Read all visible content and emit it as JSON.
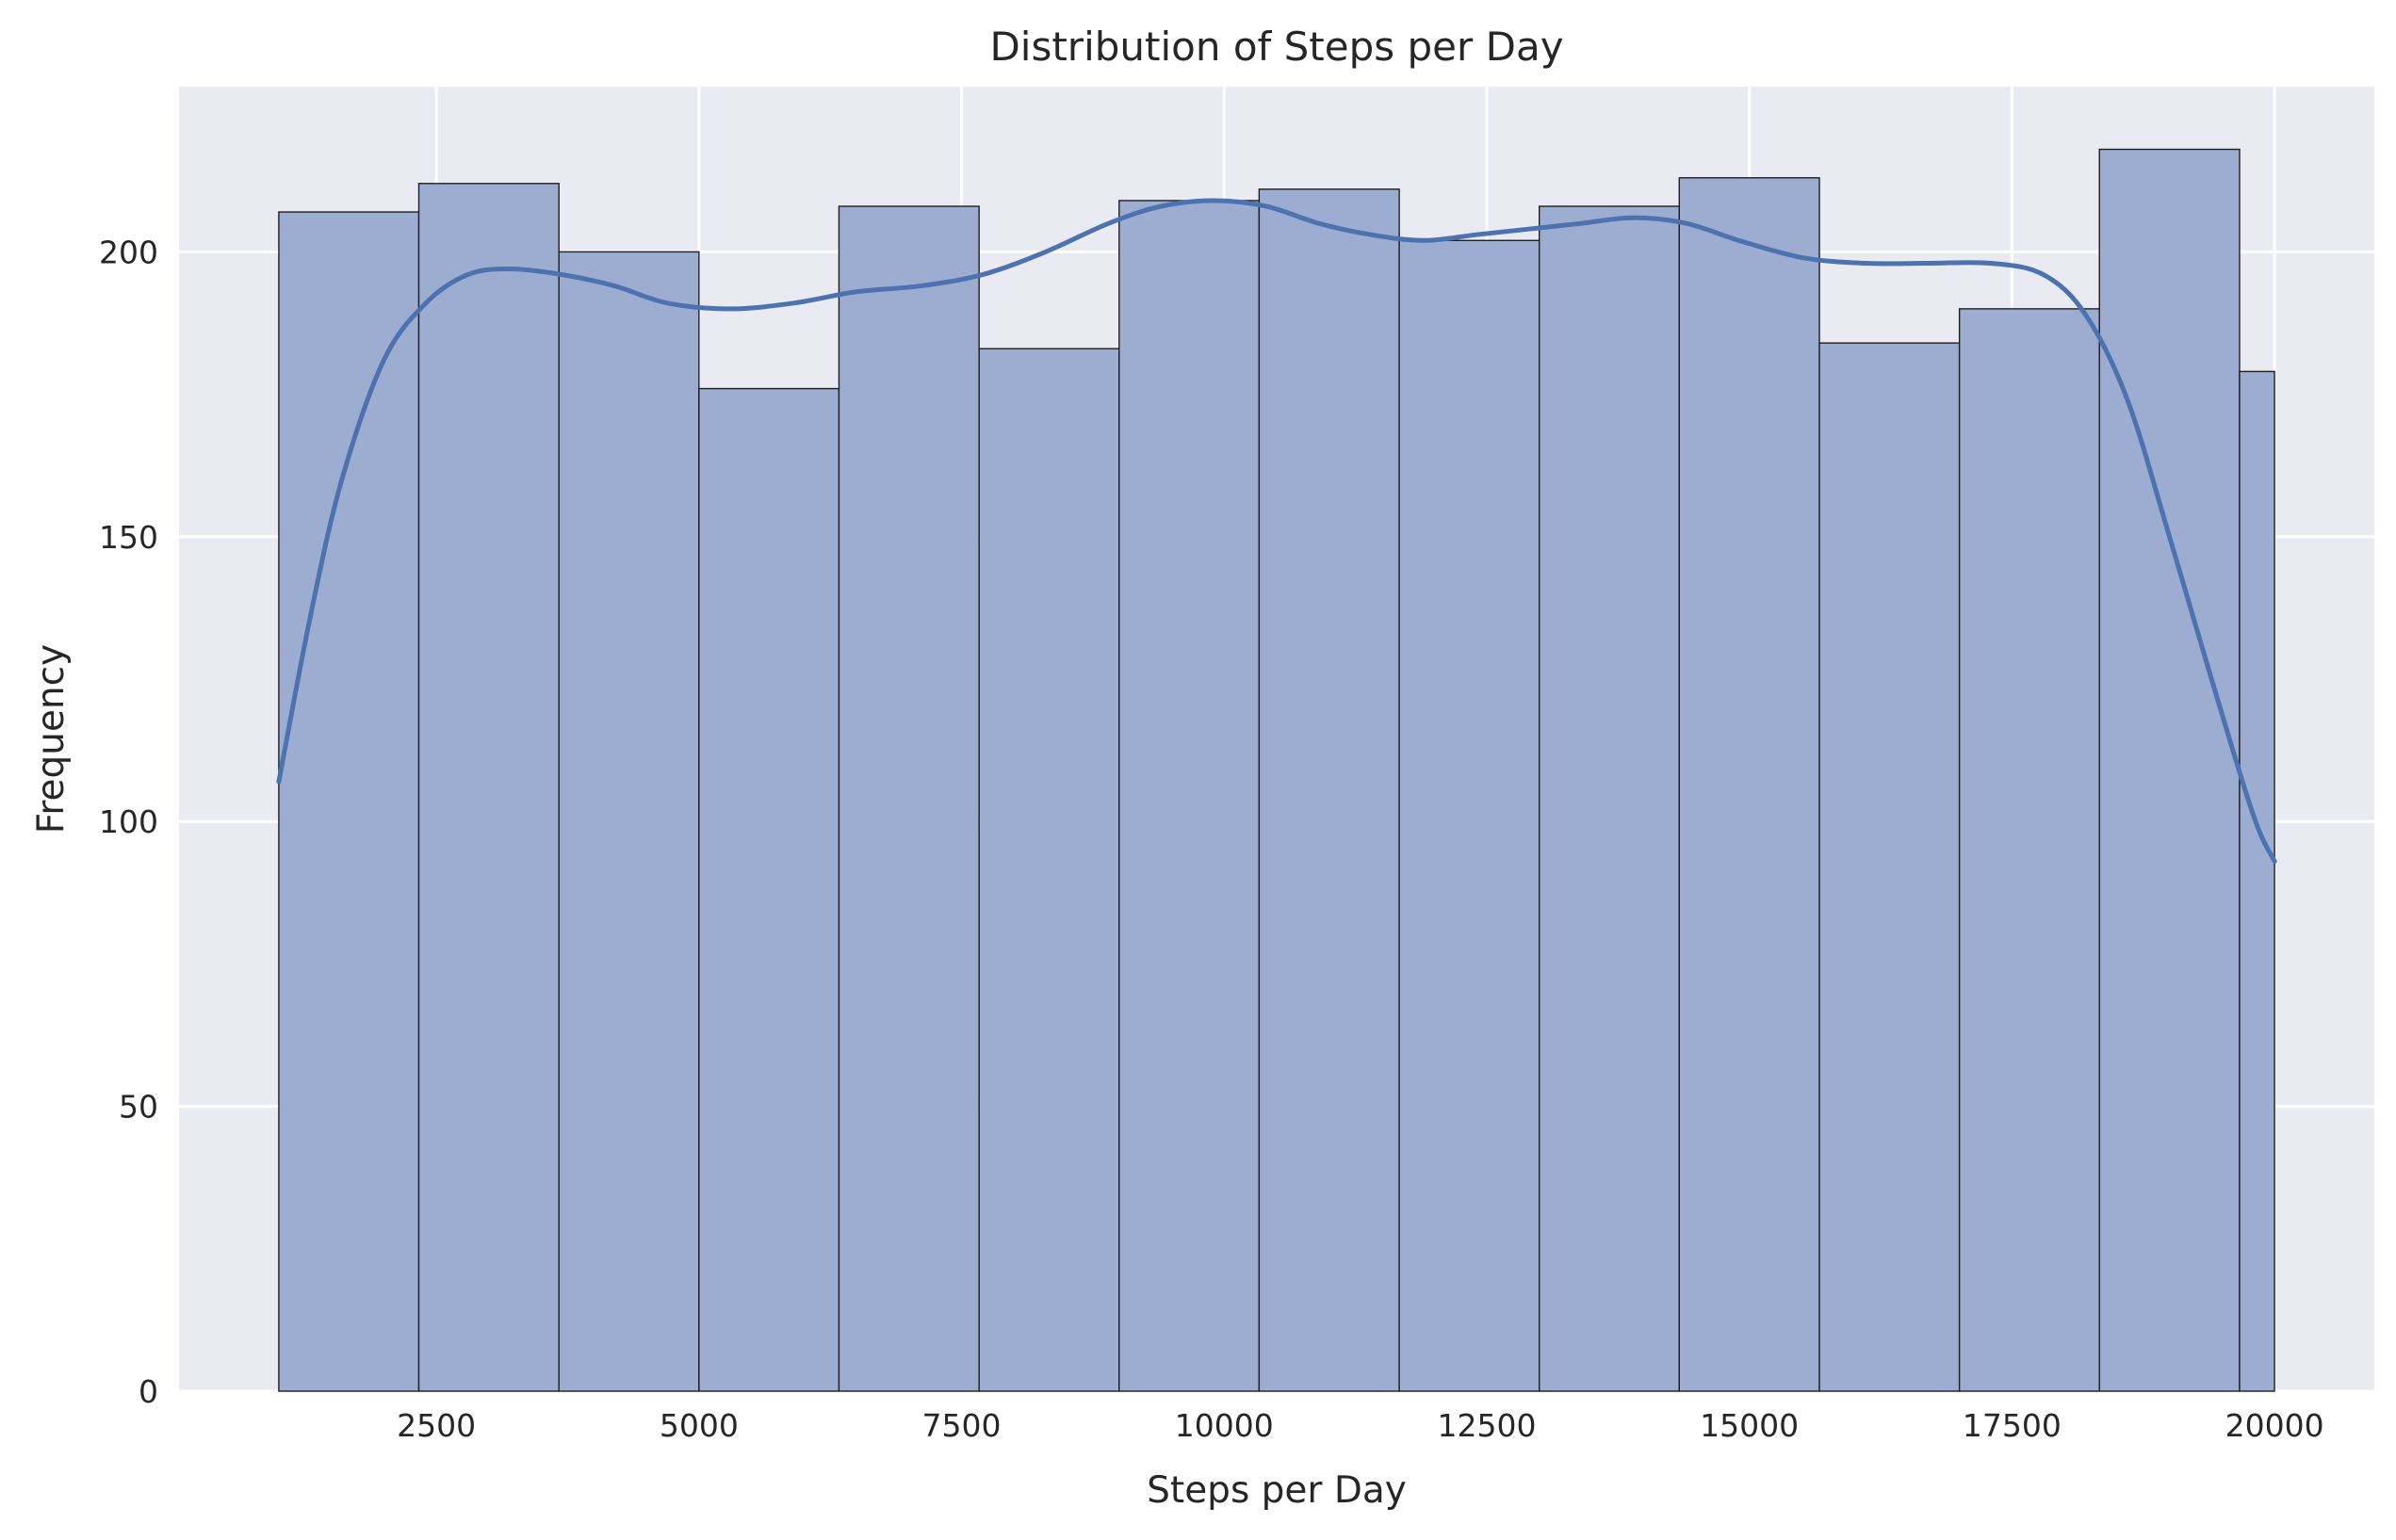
{
  "chart_data": {
    "type": "bar",
    "subtype": "histogram",
    "title": "Distribution of Steps per Day",
    "xlabel": "Steps per Day",
    "ylabel": "Frequency",
    "xlim": [
      50,
      20950
    ],
    "ylim": [
      0,
      229
    ],
    "x_ticks": [
      2500,
      5000,
      7500,
      10000,
      12500,
      15000,
      17500,
      20000
    ],
    "y_ticks": [
      0,
      50,
      100,
      150,
      200
    ],
    "grid": true,
    "bins": {
      "edges": [
        1000,
        2333,
        3667,
        5000,
        6333,
        7667,
        9000,
        10333,
        11667,
        13000,
        14333,
        15667,
        17000,
        18333,
        19667,
        20000
      ],
      "counts": [
        207,
        212,
        200,
        176,
        208,
        183,
        209,
        211,
        202,
        208,
        213,
        184,
        190,
        218,
        179
      ]
    },
    "kde": {
      "x": [
        1000,
        1300,
        1600,
        2000,
        2400,
        2800,
        3200,
        3700,
        4200,
        4700,
        5300,
        5900,
        6500,
        7100,
        7700,
        8300,
        8900,
        9400,
        9900,
        10400,
        10900,
        11400,
        11900,
        12400,
        12900,
        13400,
        13900,
        14400,
        14900,
        15500,
        16100,
        16700,
        17300,
        17800,
        18200,
        18600,
        19000,
        19400,
        19800,
        20000
      ],
      "y": [
        107,
        136,
        160,
        181,
        191,
        196,
        197,
        196,
        194,
        191,
        190,
        191,
        193,
        194,
        196,
        200,
        205,
        208,
        209,
        208,
        205,
        203,
        202,
        203,
        204,
        205,
        206,
        205,
        202,
        199,
        198,
        198,
        198,
        196,
        189,
        174,
        150,
        125,
        101,
        93
      ]
    },
    "colors": {
      "bar_fill": "#9babd0",
      "bar_edge": "#1f1f1f",
      "kde_line": "#4c72b0",
      "plot_background": "#eaeaf2",
      "grid": "#ffffff"
    }
  }
}
